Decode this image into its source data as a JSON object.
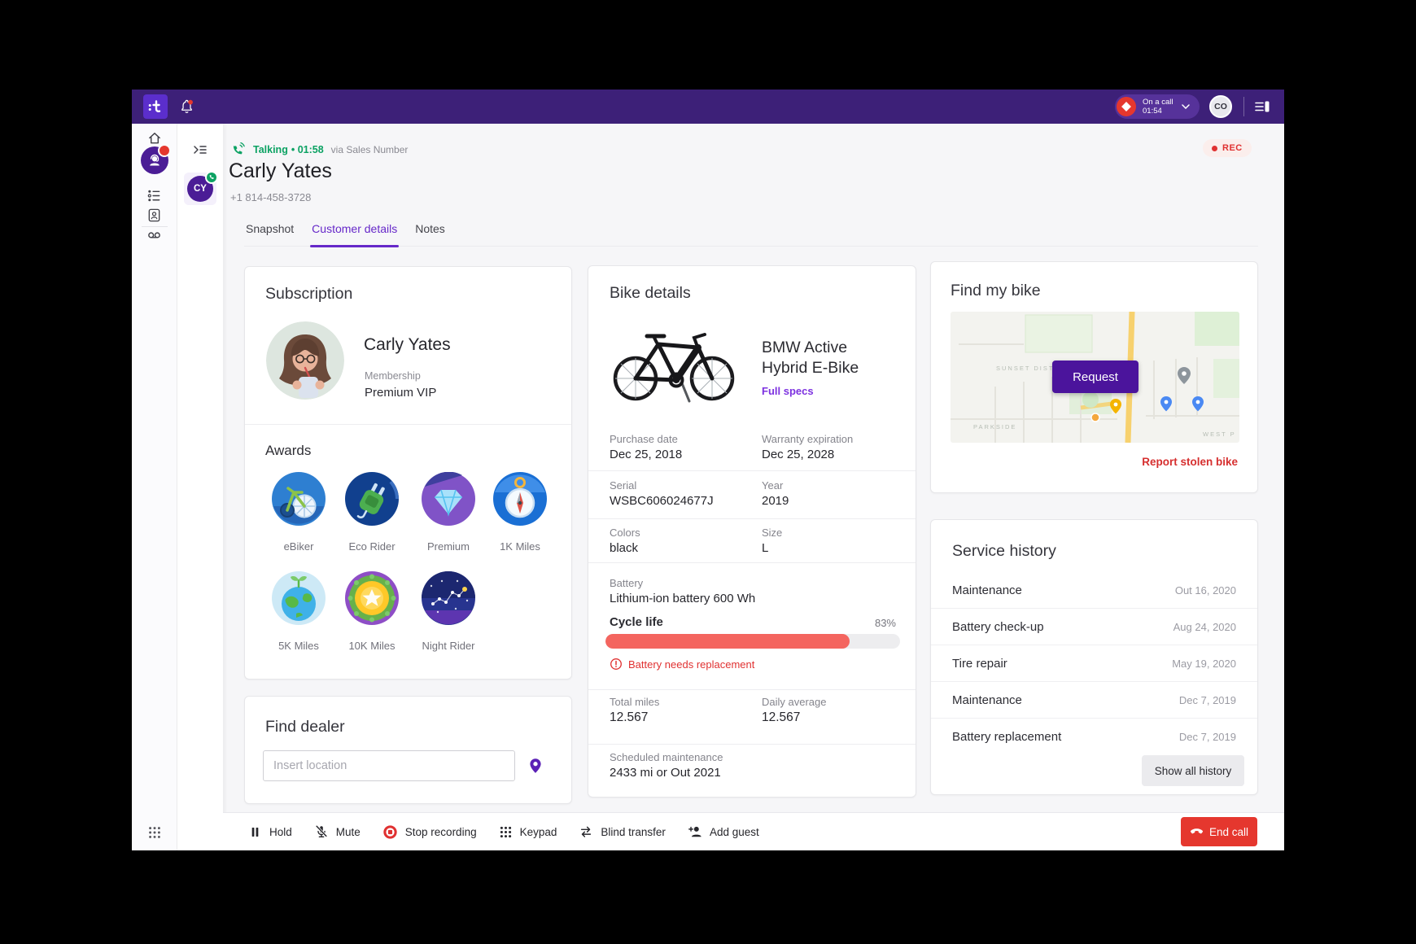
{
  "topbar": {
    "status": {
      "label": "On a call",
      "time": "01:54"
    },
    "user_initials": "CO"
  },
  "sidebar": {
    "conversation_initials": "CY"
  },
  "call_header": {
    "state": "Talking",
    "duration": "• 01:58",
    "via": "via Sales Number",
    "name": "Carly Yates",
    "phone": "+1 814-458-3728",
    "rec": "REC"
  },
  "tabs": {
    "snapshot": "Snapshot",
    "customer_details": "Customer details",
    "notes": "Notes"
  },
  "subscription": {
    "title": "Subscription",
    "name": "Carly Yates",
    "membership_label": "Membership",
    "membership": "Premium VIP",
    "awards_title": "Awards",
    "awards": [
      {
        "label": "eBiker"
      },
      {
        "label": "Eco Rider"
      },
      {
        "label": "Premium"
      },
      {
        "label": "1K Miles"
      },
      {
        "label": "5K Miles"
      },
      {
        "label": "10K Miles"
      },
      {
        "label": "Night Rider"
      }
    ]
  },
  "find_dealer": {
    "title": "Find dealer",
    "placeholder": "Insert location"
  },
  "bike_details": {
    "title": "Bike details",
    "model": "BMW Active Hybrid E-Bike",
    "full_specs": "Full specs",
    "purchase_date_label": "Purchase date",
    "purchase_date": "Dec 25, 2018",
    "warranty_label": "Warranty expiration",
    "warranty": "Dec 25, 2028",
    "serial_label": "Serial",
    "serial": "WSBC606024677J",
    "year_label": "Year",
    "year": "2019",
    "colors_label": "Colors",
    "colors": "black",
    "size_label": "Size",
    "size": "L",
    "battery_label": "Battery",
    "battery": "Lithium-ion battery 600 Wh",
    "cycle_life_label": "Cycle life",
    "cycle_life_pct": "83%",
    "cycle_life_value": 83,
    "battery_warning": "Battery needs replacement",
    "total_miles_label": "Total miles",
    "total_miles": "12.567",
    "daily_average_label": "Daily average",
    "daily_average": "12.567",
    "scheduled_label": "Scheduled maintenance",
    "scheduled": "2433 mi or Out 2021"
  },
  "find_my_bike": {
    "title": "Find my bike",
    "request": "Request",
    "report": "Report stolen bike",
    "map_labels": [
      "SUNSET DISTRICT",
      "PARKSIDE",
      "WEST P"
    ]
  },
  "service_history": {
    "title": "Service history",
    "rows": [
      {
        "service": "Maintenance",
        "date": "Out 16, 2020"
      },
      {
        "service": "Battery check-up",
        "date": "Aug 24, 2020"
      },
      {
        "service": "Tire repair",
        "date": "May 19, 2020"
      },
      {
        "service": "Maintenance",
        "date": "Dec 7, 2019"
      },
      {
        "service": "Battery replacement",
        "date": "Dec 7, 2019"
      }
    ],
    "show_all": "Show all history"
  },
  "call_controls": {
    "hold": "Hold",
    "mute": "Mute",
    "stop_recording": "Stop recording",
    "keypad": "Keypad",
    "blind_transfer": "Blind transfer",
    "add_guest": "Add guest",
    "end_call": "End call"
  },
  "colors": {
    "brand_purple": "#3d2078",
    "accent_purple": "#6628c9",
    "deep_purple": "#4b149c",
    "green": "#0ca263",
    "red": "#e03131",
    "bar_red": "#f4655f"
  }
}
